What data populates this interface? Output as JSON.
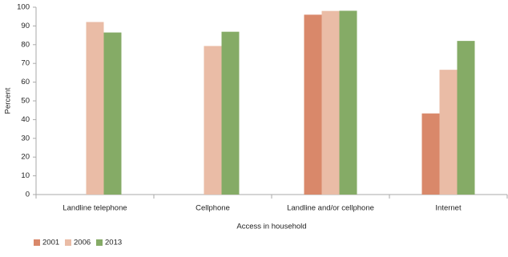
{
  "chart_data": {
    "type": "bar",
    "categories": [
      "Landline telephone",
      "Cellphone",
      "Landline and/or cellphone",
      "Internet"
    ],
    "series": [
      {
        "name": "2001",
        "color": "#d9886a",
        "values": [
          null,
          null,
          96,
          43.3
        ]
      },
      {
        "name": "2006",
        "color": "#eabca6",
        "values": [
          92.1,
          79.3,
          98,
          66.6
        ]
      },
      {
        "name": "2013",
        "color": "#85ab66",
        "values": [
          86.5,
          86.9,
          98.1,
          82
        ]
      }
    ],
    "xlabel": "Access in household",
    "ylabel": "Percent",
    "ylim": [
      0,
      100
    ],
    "yticks": [
      0,
      10,
      20,
      30,
      40,
      50,
      60,
      70,
      80,
      90,
      100
    ],
    "grid": false,
    "legend": "bottom-left"
  }
}
